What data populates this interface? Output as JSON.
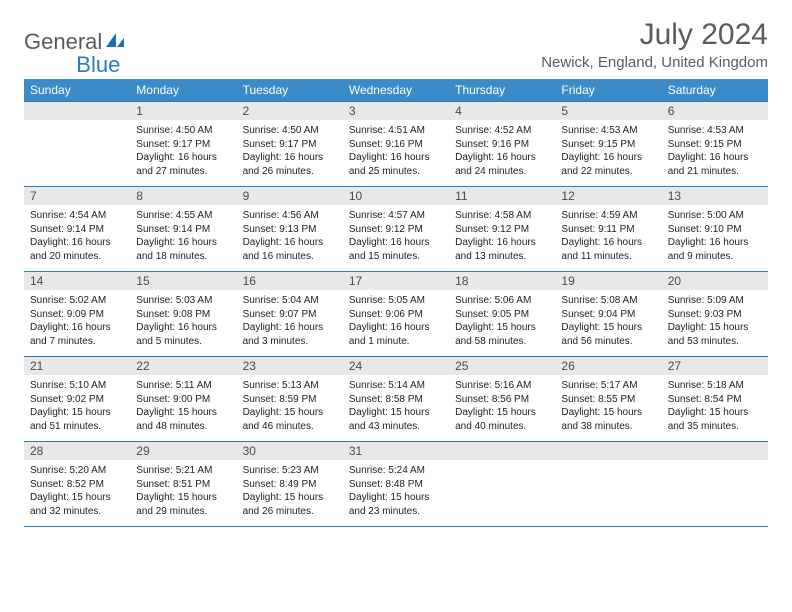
{
  "logo": {
    "gray": "General",
    "blue": "Blue"
  },
  "title": "July 2024",
  "location": "Newick, England, United Kingdom",
  "colors": {
    "header_bg": "#3b8bc8",
    "accent": "#2b7bbf",
    "daynum_bg": "#e8e8e8",
    "text_muted": "#5b5b5b"
  },
  "weekdays": [
    "Sunday",
    "Monday",
    "Tuesday",
    "Wednesday",
    "Thursday",
    "Friday",
    "Saturday"
  ],
  "weeks": [
    [
      {
        "day": "",
        "sunrise": "",
        "sunset": "",
        "daylight": ""
      },
      {
        "day": "1",
        "sunrise": "Sunrise: 4:50 AM",
        "sunset": "Sunset: 9:17 PM",
        "daylight": "Daylight: 16 hours and 27 minutes."
      },
      {
        "day": "2",
        "sunrise": "Sunrise: 4:50 AM",
        "sunset": "Sunset: 9:17 PM",
        "daylight": "Daylight: 16 hours and 26 minutes."
      },
      {
        "day": "3",
        "sunrise": "Sunrise: 4:51 AM",
        "sunset": "Sunset: 9:16 PM",
        "daylight": "Daylight: 16 hours and 25 minutes."
      },
      {
        "day": "4",
        "sunrise": "Sunrise: 4:52 AM",
        "sunset": "Sunset: 9:16 PM",
        "daylight": "Daylight: 16 hours and 24 minutes."
      },
      {
        "day": "5",
        "sunrise": "Sunrise: 4:53 AM",
        "sunset": "Sunset: 9:15 PM",
        "daylight": "Daylight: 16 hours and 22 minutes."
      },
      {
        "day": "6",
        "sunrise": "Sunrise: 4:53 AM",
        "sunset": "Sunset: 9:15 PM",
        "daylight": "Daylight: 16 hours and 21 minutes."
      }
    ],
    [
      {
        "day": "7",
        "sunrise": "Sunrise: 4:54 AM",
        "sunset": "Sunset: 9:14 PM",
        "daylight": "Daylight: 16 hours and 20 minutes."
      },
      {
        "day": "8",
        "sunrise": "Sunrise: 4:55 AM",
        "sunset": "Sunset: 9:14 PM",
        "daylight": "Daylight: 16 hours and 18 minutes."
      },
      {
        "day": "9",
        "sunrise": "Sunrise: 4:56 AM",
        "sunset": "Sunset: 9:13 PM",
        "daylight": "Daylight: 16 hours and 16 minutes."
      },
      {
        "day": "10",
        "sunrise": "Sunrise: 4:57 AM",
        "sunset": "Sunset: 9:12 PM",
        "daylight": "Daylight: 16 hours and 15 minutes."
      },
      {
        "day": "11",
        "sunrise": "Sunrise: 4:58 AM",
        "sunset": "Sunset: 9:12 PM",
        "daylight": "Daylight: 16 hours and 13 minutes."
      },
      {
        "day": "12",
        "sunrise": "Sunrise: 4:59 AM",
        "sunset": "Sunset: 9:11 PM",
        "daylight": "Daylight: 16 hours and 11 minutes."
      },
      {
        "day": "13",
        "sunrise": "Sunrise: 5:00 AM",
        "sunset": "Sunset: 9:10 PM",
        "daylight": "Daylight: 16 hours and 9 minutes."
      }
    ],
    [
      {
        "day": "14",
        "sunrise": "Sunrise: 5:02 AM",
        "sunset": "Sunset: 9:09 PM",
        "daylight": "Daylight: 16 hours and 7 minutes."
      },
      {
        "day": "15",
        "sunrise": "Sunrise: 5:03 AM",
        "sunset": "Sunset: 9:08 PM",
        "daylight": "Daylight: 16 hours and 5 minutes."
      },
      {
        "day": "16",
        "sunrise": "Sunrise: 5:04 AM",
        "sunset": "Sunset: 9:07 PM",
        "daylight": "Daylight: 16 hours and 3 minutes."
      },
      {
        "day": "17",
        "sunrise": "Sunrise: 5:05 AM",
        "sunset": "Sunset: 9:06 PM",
        "daylight": "Daylight: 16 hours and 1 minute."
      },
      {
        "day": "18",
        "sunrise": "Sunrise: 5:06 AM",
        "sunset": "Sunset: 9:05 PM",
        "daylight": "Daylight: 15 hours and 58 minutes."
      },
      {
        "day": "19",
        "sunrise": "Sunrise: 5:08 AM",
        "sunset": "Sunset: 9:04 PM",
        "daylight": "Daylight: 15 hours and 56 minutes."
      },
      {
        "day": "20",
        "sunrise": "Sunrise: 5:09 AM",
        "sunset": "Sunset: 9:03 PM",
        "daylight": "Daylight: 15 hours and 53 minutes."
      }
    ],
    [
      {
        "day": "21",
        "sunrise": "Sunrise: 5:10 AM",
        "sunset": "Sunset: 9:02 PM",
        "daylight": "Daylight: 15 hours and 51 minutes."
      },
      {
        "day": "22",
        "sunrise": "Sunrise: 5:11 AM",
        "sunset": "Sunset: 9:00 PM",
        "daylight": "Daylight: 15 hours and 48 minutes."
      },
      {
        "day": "23",
        "sunrise": "Sunrise: 5:13 AM",
        "sunset": "Sunset: 8:59 PM",
        "daylight": "Daylight: 15 hours and 46 minutes."
      },
      {
        "day": "24",
        "sunrise": "Sunrise: 5:14 AM",
        "sunset": "Sunset: 8:58 PM",
        "daylight": "Daylight: 15 hours and 43 minutes."
      },
      {
        "day": "25",
        "sunrise": "Sunrise: 5:16 AM",
        "sunset": "Sunset: 8:56 PM",
        "daylight": "Daylight: 15 hours and 40 minutes."
      },
      {
        "day": "26",
        "sunrise": "Sunrise: 5:17 AM",
        "sunset": "Sunset: 8:55 PM",
        "daylight": "Daylight: 15 hours and 38 minutes."
      },
      {
        "day": "27",
        "sunrise": "Sunrise: 5:18 AM",
        "sunset": "Sunset: 8:54 PM",
        "daylight": "Daylight: 15 hours and 35 minutes."
      }
    ],
    [
      {
        "day": "28",
        "sunrise": "Sunrise: 5:20 AM",
        "sunset": "Sunset: 8:52 PM",
        "daylight": "Daylight: 15 hours and 32 minutes."
      },
      {
        "day": "29",
        "sunrise": "Sunrise: 5:21 AM",
        "sunset": "Sunset: 8:51 PM",
        "daylight": "Daylight: 15 hours and 29 minutes."
      },
      {
        "day": "30",
        "sunrise": "Sunrise: 5:23 AM",
        "sunset": "Sunset: 8:49 PM",
        "daylight": "Daylight: 15 hours and 26 minutes."
      },
      {
        "day": "31",
        "sunrise": "Sunrise: 5:24 AM",
        "sunset": "Sunset: 8:48 PM",
        "daylight": "Daylight: 15 hours and 23 minutes."
      },
      {
        "day": "",
        "sunrise": "",
        "sunset": "",
        "daylight": ""
      },
      {
        "day": "",
        "sunrise": "",
        "sunset": "",
        "daylight": ""
      },
      {
        "day": "",
        "sunrise": "",
        "sunset": "",
        "daylight": ""
      }
    ]
  ]
}
